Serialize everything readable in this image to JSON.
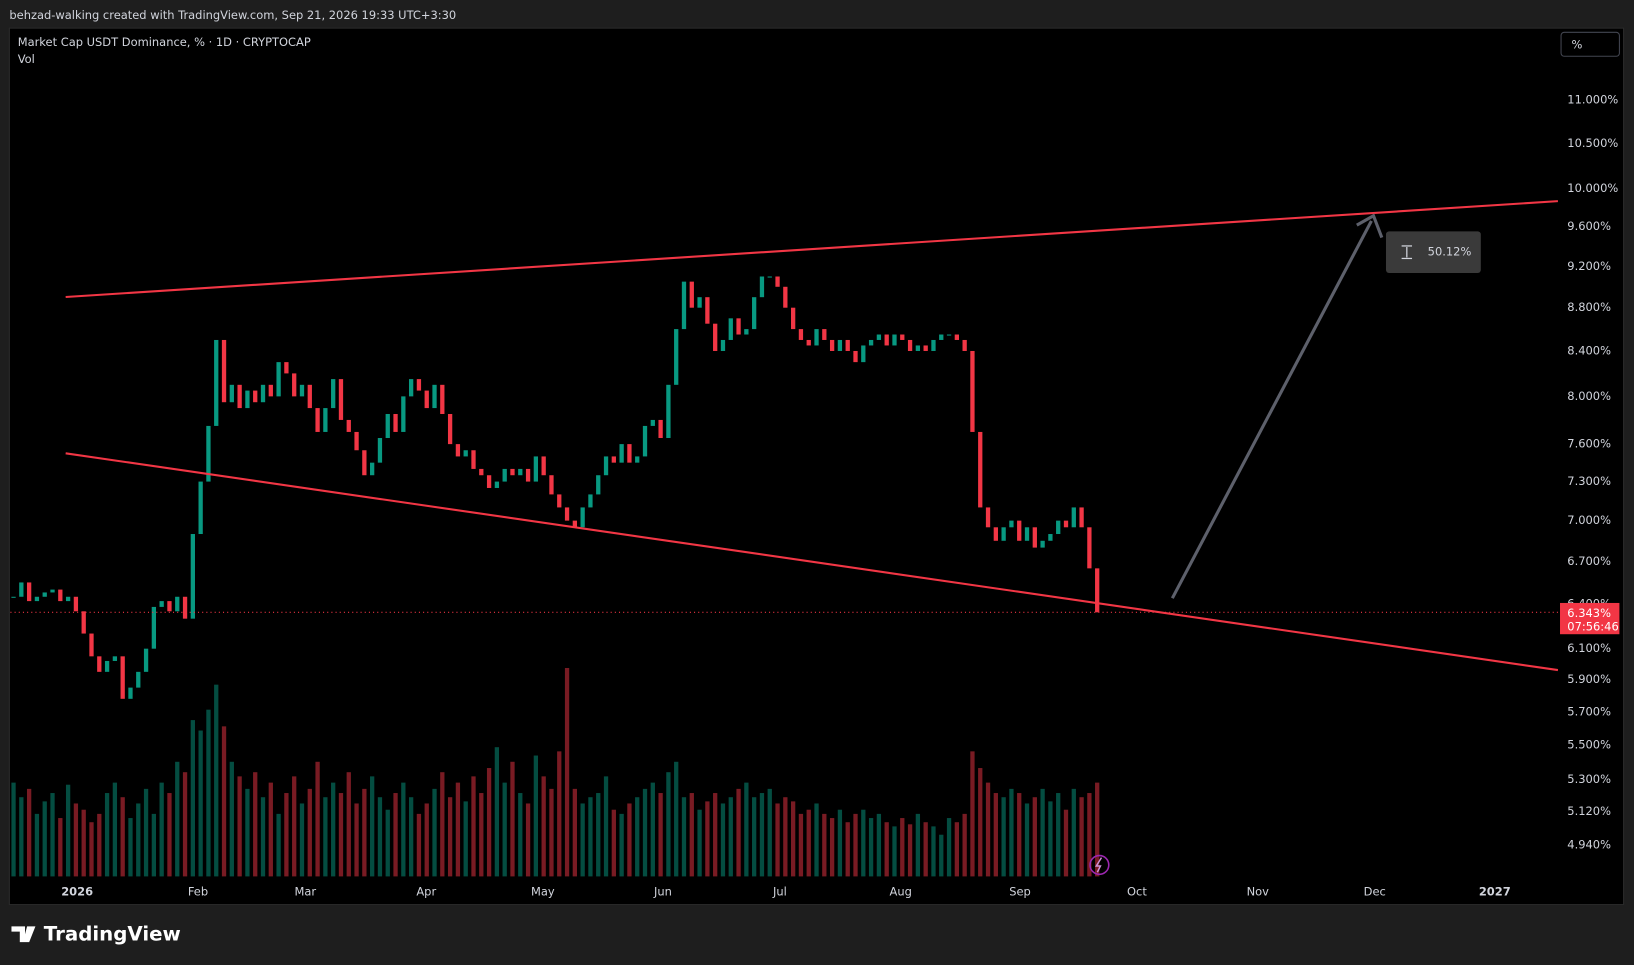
{
  "header": {
    "attribution": "behzad-walking created with TradingView.com, Sep 21, 2026 19:33 UTC+3:30",
    "brand": "TradingView"
  },
  "chart_data": {
    "type": "candlestick",
    "title": "Market Cap USDT Dominance, % · 1D · CRYPTOCAP",
    "volume_label": "Vol",
    "scale_button": "%",
    "log_scale": true,
    "grid": false,
    "up_color": "#089981",
    "down_color": "#f23645",
    "xlim": [
      -0.4,
      198.1
    ],
    "xticks": [
      {
        "value": 8.16,
        "label": "2026"
      },
      {
        "value": 23.66,
        "label": "Feb"
      },
      {
        "value": 37.43,
        "label": "Mar"
      },
      {
        "value": 52.94,
        "label": "Apr"
      },
      {
        "value": 67.9,
        "label": "May"
      },
      {
        "value": 83.3,
        "label": "Jun"
      },
      {
        "value": 98.3,
        "label": "Jul"
      },
      {
        "value": 113.8,
        "label": "Aug"
      },
      {
        "value": 129.1,
        "label": "Sep"
      },
      {
        "value": 144.1,
        "label": "Oct"
      },
      {
        "value": 159.6,
        "label": "Nov"
      },
      {
        "value": 174.6,
        "label": "Dec"
      },
      {
        "value": 190.0,
        "label": "2027"
      }
    ],
    "ylim": [
      4.765,
      11.884
    ],
    "yticks": [
      {
        "value": 11,
        "label": "11.000%"
      },
      {
        "value": 10.5,
        "label": "10.500%"
      },
      {
        "value": 10,
        "label": "10.000%"
      },
      {
        "value": 9.6,
        "label": "9.600%"
      },
      {
        "value": 9.2,
        "label": "9.200%"
      },
      {
        "value": 8.8,
        "label": "8.800%"
      },
      {
        "value": 8.4,
        "label": "8.400%"
      },
      {
        "value": 8,
        "label": "8.000%"
      },
      {
        "value": 7.6,
        "label": "7.600%"
      },
      {
        "value": 7.3,
        "label": "7.300%"
      },
      {
        "value": 7,
        "label": "7.000%"
      },
      {
        "value": 6.7,
        "label": "6.700%"
      },
      {
        "value": 6.4,
        "label": "6.400%"
      },
      {
        "value": 6.1,
        "label": "6.100%"
      },
      {
        "value": 5.9,
        "label": "5.900%"
      },
      {
        "value": 5.7,
        "label": "5.700%"
      },
      {
        "value": 5.5,
        "label": "5.500%"
      },
      {
        "value": 5.3,
        "label": "5.300%"
      },
      {
        "value": 5.12,
        "label": "5.120%"
      },
      {
        "value": 4.94,
        "label": "4.940%"
      }
    ],
    "close": [
      6.45,
      6.55,
      6.42,
      6.45,
      6.48,
      6.5,
      6.42,
      6.45,
      6.35,
      6.2,
      6.05,
      5.95,
      6.02,
      6.05,
      5.78,
      5.85,
      5.95,
      6.1,
      6.38,
      6.42,
      6.35,
      6.45,
      6.3,
      6.9,
      7.3,
      7.75,
      8.5,
      7.95,
      8.1,
      7.9,
      8.05,
      7.95,
      8.1,
      8.0,
      8.3,
      8.2,
      8.0,
      8.1,
      7.9,
      7.7,
      7.9,
      8.15,
      7.8,
      7.7,
      7.55,
      7.35,
      7.45,
      7.65,
      7.85,
      7.7,
      8.0,
      8.15,
      8.05,
      7.9,
      8.1,
      7.85,
      7.6,
      7.5,
      7.55,
      7.4,
      7.35,
      7.25,
      7.3,
      7.4,
      7.35,
      7.4,
      7.3,
      7.5,
      7.35,
      7.2,
      7.1,
      7.0,
      6.95,
      7.1,
      7.2,
      7.35,
      7.5,
      7.45,
      7.6,
      7.45,
      7.5,
      7.75,
      7.8,
      7.65,
      8.1,
      8.6,
      9.05,
      8.8,
      8.9,
      8.65,
      8.4,
      8.5,
      8.7,
      8.55,
      8.6,
      8.9,
      9.1,
      9.1,
      9.0,
      8.8,
      8.6,
      8.5,
      8.45,
      8.6,
      8.5,
      8.4,
      8.5,
      8.4,
      8.3,
      8.45,
      8.5,
      8.55,
      8.45,
      8.55,
      8.5,
      8.4,
      8.45,
      8.4,
      8.5,
      8.55,
      8.55,
      8.5,
      8.4,
      7.7,
      7.1,
      6.95,
      6.85,
      6.95,
      7.0,
      6.85,
      6.95,
      6.8,
      6.85,
      6.9,
      7.0,
      6.95,
      7.1,
      6.95,
      6.65,
      6.343
    ],
    "volume": [
      45,
      38,
      42,
      30,
      36,
      40,
      28,
      44,
      35,
      32,
      26,
      30,
      40,
      45,
      38,
      28,
      35,
      42,
      30,
      45,
      40,
      55,
      50,
      75,
      70,
      80,
      92,
      72,
      55,
      48,
      42,
      50,
      38,
      45,
      30,
      40,
      48,
      35,
      42,
      55,
      38,
      45,
      40,
      50,
      35,
      42,
      48,
      38,
      32,
      40,
      45,
      38,
      30,
      35,
      42,
      50,
      38,
      45,
      36,
      48,
      40,
      52,
      62,
      45,
      55,
      40,
      35,
      58,
      48,
      42,
      60,
      100,
      42,
      35,
      38,
      40,
      48,
      32,
      30,
      35,
      38,
      42,
      45,
      40,
      50,
      55,
      38,
      40,
      32,
      36,
      40,
      35,
      38,
      42,
      45,
      38,
      40,
      42,
      35,
      38,
      36,
      30,
      32,
      35,
      30,
      28,
      32,
      26,
      30,
      32,
      28,
      30,
      26,
      24,
      28,
      25,
      30,
      26,
      24,
      20,
      28,
      26,
      30,
      60,
      52,
      45,
      40,
      38,
      42,
      40,
      35,
      38,
      42,
      36,
      40,
      32,
      42,
      38,
      40,
      45
    ],
    "vlim": [
      0,
      100
    ],
    "last_price": {
      "value": 6.343,
      "label": "6.343%"
    },
    "countdown": "07:56:46",
    "measure_label": "50.12%"
  }
}
